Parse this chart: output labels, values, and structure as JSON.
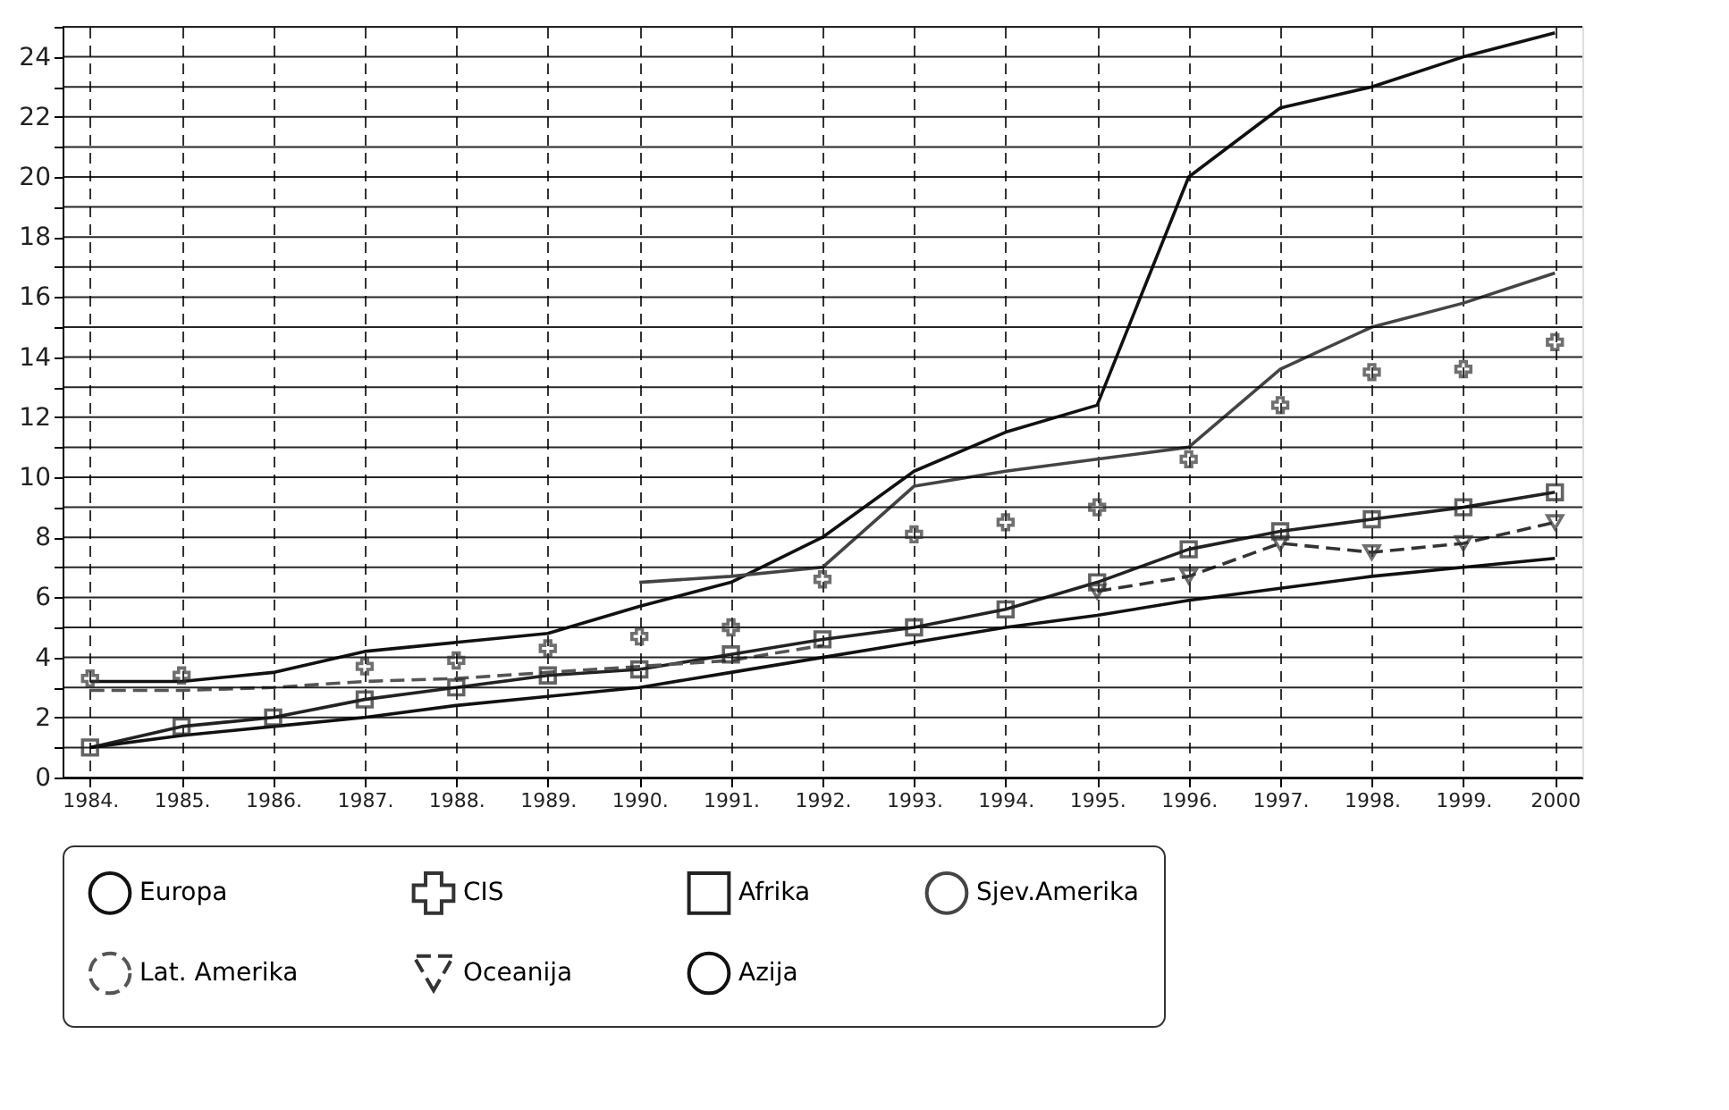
{
  "chart_data": {
    "type": "line",
    "categories": [
      "1984.",
      "1985.",
      "1986.",
      "1987.",
      "1988.",
      "1989.",
      "1990.",
      "1991.",
      "1992.",
      "1993.",
      "1994.",
      "1995.",
      "1996.",
      "1997.",
      "1998.",
      "1999.",
      "2000"
    ],
    "ylim": [
      0,
      25
    ],
    "yticks": [
      0,
      {
        "value": 1,
        "label": null
      },
      2,
      {
        "value": 3,
        "label": null
      },
      4,
      {
        "value": 5,
        "label": null
      },
      6,
      {
        "value": 7,
        "label": null
      },
      8,
      {
        "value": 9,
        "label": null
      },
      10,
      {
        "value": 11,
        "label": null
      },
      12,
      {
        "value": 13,
        "label": null
      },
      14,
      {
        "value": 15,
        "label": null
      },
      16,
      {
        "value": 17,
        "label": null
      },
      18,
      {
        "value": 19,
        "label": null
      },
      20,
      {
        "value": 21,
        "label": null
      },
      22,
      {
        "value": 23,
        "label": null
      },
      24,
      {
        "value": 25,
        "label": null
      }
    ],
    "grid": true,
    "legend": "bottom",
    "series": [
      {
        "name": "Europa",
        "color": "#111111",
        "type": "line",
        "marker": "none",
        "line_style": "solid",
        "values": [
          3.2,
          3.2,
          3.5,
          4.2,
          4.5,
          4.8,
          5.7,
          6.5,
          8.0,
          10.2,
          11.5,
          12.4,
          20.0,
          22.3,
          23.0,
          24.0,
          24.8
        ]
      },
      {
        "name": "CIS",
        "color": "#333333",
        "type": "scatter",
        "marker": "cross",
        "values": [
          3.3,
          3.4,
          null,
          3.7,
          3.9,
          4.3,
          4.7,
          5.0,
          6.6,
          8.1,
          8.5,
          9.0,
          10.6,
          12.4,
          13.5,
          13.6,
          14.5
        ]
      },
      {
        "name": "Afrika",
        "color": "#222222",
        "marker": "square",
        "line_style": "solid",
        "values": [
          1.0,
          1.7,
          2.0,
          2.6,
          3.0,
          3.4,
          3.6,
          4.1,
          4.6,
          5.0,
          5.6,
          6.5,
          7.6,
          8.2,
          8.6,
          9.0,
          9.5
        ]
      },
      {
        "name": "Sjev.Amerika",
        "color": "#444444",
        "marker": "none",
        "line_style": "solid",
        "values": [
          null,
          null,
          null,
          null,
          null,
          null,
          6.5,
          6.7,
          7.0,
          9.7,
          10.2,
          10.6,
          11.0,
          13.6,
          15.0,
          15.8,
          16.8
        ]
      },
      {
        "name": "Lat. Amerika",
        "color": "#555555",
        "marker": "none",
        "line_style": "dashed",
        "values": [
          2.9,
          2.9,
          3.0,
          3.2,
          3.3,
          3.5,
          3.7,
          3.9,
          4.4,
          null,
          null,
          null,
          null,
          null,
          null,
          null,
          null
        ]
      },
      {
        "name": "Oceanija",
        "color": "#333333",
        "marker": "triangle",
        "line_style": "dashed",
        "values": [
          null,
          null,
          null,
          null,
          null,
          null,
          null,
          null,
          null,
          null,
          null,
          6.2,
          6.7,
          7.8,
          7.5,
          7.8,
          8.5
        ]
      },
      {
        "name": "Azija",
        "color": "#111111",
        "type": "line",
        "marker": "none",
        "line_style": "solid",
        "values": [
          1.0,
          1.4,
          1.7,
          2.0,
          2.4,
          2.7,
          3.0,
          3.5,
          4.0,
          4.5,
          5.0,
          5.4,
          5.9,
          6.3,
          6.7,
          7.0,
          7.3
        ]
      }
    ]
  }
}
